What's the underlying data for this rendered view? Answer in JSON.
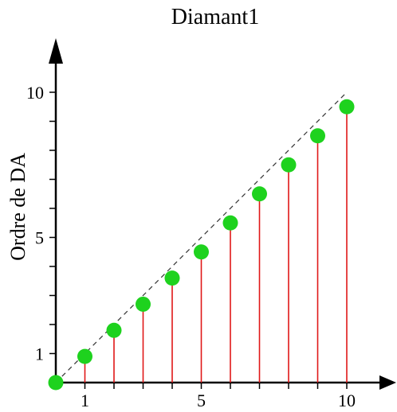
{
  "chart_data": {
    "type": "scatter",
    "title": "Diamant1",
    "xlabel": "",
    "ylabel": "Ordre de DA",
    "xlim": [
      0,
      10
    ],
    "ylim": [
      0,
      10
    ],
    "x_ticks": [
      {
        "value": 1,
        "label": "1"
      },
      {
        "value": 2,
        "label": ""
      },
      {
        "value": 3,
        "label": ""
      },
      {
        "value": 4,
        "label": ""
      },
      {
        "value": 5,
        "label": "5"
      },
      {
        "value": 6,
        "label": ""
      },
      {
        "value": 7,
        "label": ""
      },
      {
        "value": 8,
        "label": ""
      },
      {
        "value": 9,
        "label": ""
      },
      {
        "value": 10,
        "label": "10"
      }
    ],
    "y_ticks": [
      {
        "value": 1,
        "label": "1"
      },
      {
        "value": 2,
        "label": ""
      },
      {
        "value": 3,
        "label": ""
      },
      {
        "value": 4,
        "label": ""
      },
      {
        "value": 5,
        "label": "5"
      },
      {
        "value": 6,
        "label": ""
      },
      {
        "value": 7,
        "label": ""
      },
      {
        "value": 8,
        "label": ""
      },
      {
        "value": 9,
        "label": ""
      },
      {
        "value": 10,
        "label": "10"
      }
    ],
    "points": {
      "x": [
        0,
        1,
        2,
        3,
        4,
        5,
        6,
        7,
        8,
        9,
        10
      ],
      "y": [
        0,
        0.9,
        1.8,
        2.7,
        3.6,
        4.5,
        5.5,
        6.5,
        7.5,
        8.5,
        9.5
      ]
    },
    "reference_line": {
      "x": [
        0,
        10
      ],
      "y": [
        0,
        10
      ],
      "style": "dashed"
    },
    "stems": true,
    "grid": false,
    "colors": {
      "points": "#1ed21e",
      "stems": "#e01818",
      "reference_line": "#333333",
      "axes": "#000000"
    }
  }
}
